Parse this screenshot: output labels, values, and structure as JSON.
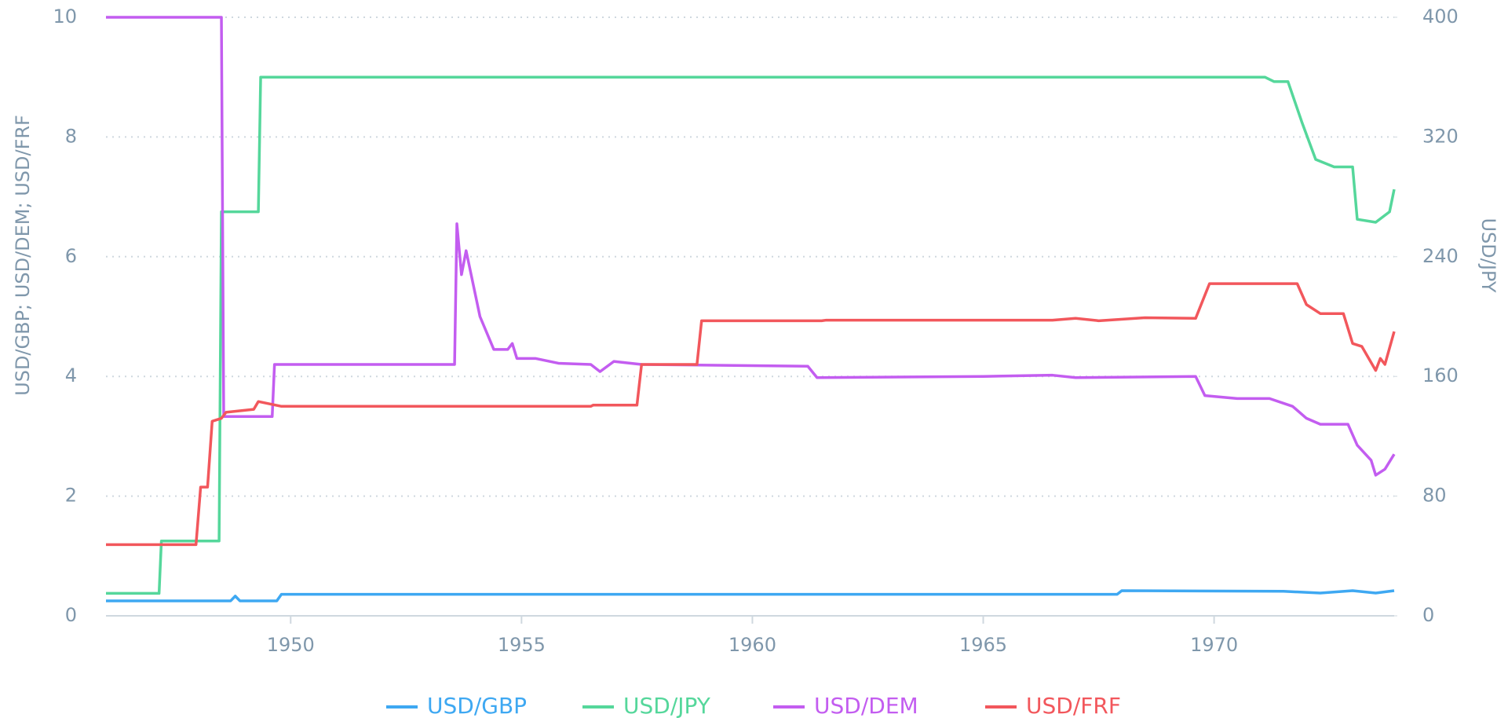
{
  "chart_data": {
    "type": "line",
    "y_label": "USD/GBP; USD/DEM; USD/FRF",
    "y2_label": "USD/JPY",
    "xlim": [
      1946,
      1973.9
    ],
    "xticks": [
      1950,
      1955,
      1960,
      1965,
      1970
    ],
    "ylim": [
      0,
      10
    ],
    "yticks": [
      0,
      2,
      4,
      6,
      8,
      10
    ],
    "y2lim": [
      0,
      400
    ],
    "y2ticks": [
      0,
      80,
      160,
      240,
      320,
      400
    ],
    "grid": true,
    "legend": "bottom",
    "series": [
      {
        "name": "USD/GBP",
        "color": "#3ea8f2",
        "x": [
          1946,
          1948.7,
          1948.8,
          1948.9,
          1949.7,
          1949.8,
          1967.9,
          1968,
          1971.5,
          1972.3,
          1973,
          1973.5,
          1973.9
        ],
        "values": [
          0.25,
          0.25,
          0.33,
          0.25,
          0.25,
          0.36,
          0.36,
          0.42,
          0.41,
          0.38,
          0.42,
          0.38,
          0.42
        ]
      },
      {
        "name": "USD/JPY",
        "color": "#55d79b",
        "axis": "y2",
        "x": [
          1946,
          1947.15,
          1947.2,
          1948.45,
          1948.5,
          1949.3,
          1949.35,
          1971.1,
          1971.3,
          1971.6,
          1971.9,
          1972.2,
          1972.6,
          1973.0,
          1973.1,
          1973.5,
          1973.8,
          1973.9
        ],
        "values": [
          15,
          15,
          50,
          50,
          270,
          270,
          360,
          360,
          357,
          357,
          330,
          305,
          300,
          300,
          265,
          263,
          270,
          285
        ]
      },
      {
        "name": "USD/DEM",
        "color": "#c35df0",
        "x": [
          1946,
          1948.5,
          1948.55,
          1949.6,
          1949.65,
          1953.55,
          1953.6,
          1953.7,
          1953.8,
          1954.1,
          1954.4,
          1954.7,
          1954.8,
          1954.9,
          1955.3,
          1955.8,
          1956.5,
          1956.7,
          1957,
          1957.6,
          1960,
          1961.2,
          1961.4,
          1965,
          1966.5,
          1967,
          1969.6,
          1969.8,
          1970.5,
          1971.2,
          1971.7,
          1972,
          1972.3,
          1972.9,
          1973.1,
          1973.4,
          1973.5,
          1973.7,
          1973.9
        ],
        "values": [
          10,
          10,
          3.33,
          3.33,
          4.2,
          4.2,
          6.55,
          5.7,
          6.1,
          5.0,
          4.45,
          4.45,
          4.55,
          4.3,
          4.3,
          4.22,
          4.2,
          4.08,
          4.25,
          4.2,
          4.18,
          4.17,
          3.98,
          4.0,
          4.02,
          3.98,
          4.0,
          3.68,
          3.63,
          3.63,
          3.5,
          3.3,
          3.2,
          3.2,
          2.85,
          2.6,
          2.35,
          2.45,
          2.7
        ]
      },
      {
        "name": "USD/FRF",
        "color": "#f2575c",
        "x": [
          1946,
          1947.95,
          1948.05,
          1948.2,
          1948.3,
          1948.5,
          1948.6,
          1949.2,
          1949.3,
          1949.8,
          1956.5,
          1956.55,
          1957.5,
          1957.6,
          1958.8,
          1958.9,
          1961.5,
          1961.6,
          1966.5,
          1967,
          1967.5,
          1968.5,
          1969.6,
          1969.9,
          1971.8,
          1972,
          1972.3,
          1972.8,
          1973,
          1973.2,
          1973.5,
          1973.6,
          1973.7,
          1973.9
        ],
        "values": [
          1.19,
          1.19,
          2.15,
          2.15,
          3.25,
          3.3,
          3.4,
          3.45,
          3.58,
          3.5,
          3.5,
          3.52,
          3.52,
          4.2,
          4.2,
          4.93,
          4.93,
          4.94,
          4.94,
          4.97,
          4.93,
          4.98,
          4.97,
          5.55,
          5.55,
          5.2,
          5.05,
          5.05,
          4.55,
          4.5,
          4.1,
          4.3,
          4.2,
          4.75
        ]
      }
    ]
  }
}
